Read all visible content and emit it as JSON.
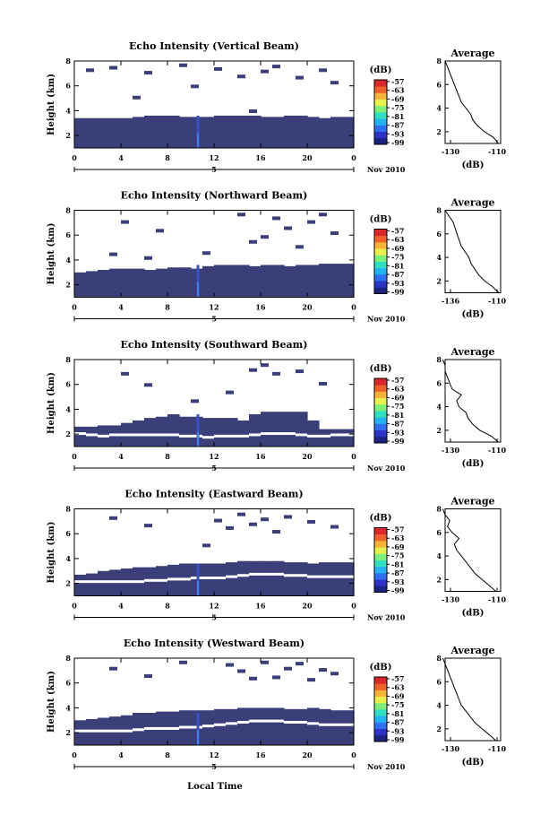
{
  "x_axis_label": "Local Time",
  "date_label": "Nov 2010",
  "day_label": "5",
  "colorbar": {
    "unit": "(dB)",
    "ticks": [
      "-57",
      "-63",
      "-69",
      "-75",
      "-81",
      "-87",
      "-93",
      "-99"
    ],
    "colors": [
      "#1a2380",
      "#2b34c4",
      "#2f6ff0",
      "#24b3f2",
      "#2fe0c0",
      "#7ef07a",
      "#e8f04a",
      "#f7b23a",
      "#f0602a",
      "#d8262a"
    ]
  },
  "colors": {
    "echo_low": "#3a3f7a",
    "echo_mid": "#3b4fc4",
    "echo_bright": "#4a8cf0"
  },
  "chart_data": [
    {
      "type": "heatmap",
      "title": "Echo Intensity (Vertical Beam)",
      "ylabel": "Height (km)",
      "xlim": [
        0,
        24
      ],
      "ylim": [
        1,
        8
      ],
      "xticks": [
        "0",
        "4",
        "8",
        "12",
        "16",
        "20",
        "0"
      ],
      "yticks": [
        "2",
        "4",
        "6",
        "8"
      ],
      "echo_top_km": [
        3.4,
        3.4,
        3.4,
        3.4,
        3.4,
        3.5,
        3.6,
        3.6,
        3.6,
        3.5,
        3.5,
        3.5,
        3.6,
        3.6,
        3.6,
        3.6,
        3.5,
        3.5,
        3.6,
        3.6,
        3.5,
        3.4,
        3.5,
        3.5
      ],
      "gap_km": null,
      "cloud_cells": [
        [
          1,
          7.4
        ],
        [
          3,
          7.6
        ],
        [
          6,
          7.2
        ],
        [
          9,
          7.8
        ],
        [
          12,
          7.5
        ],
        [
          14,
          6.9
        ],
        [
          16,
          7.3
        ],
        [
          17,
          7.7
        ],
        [
          19,
          6.8
        ],
        [
          21,
          7.4
        ],
        [
          22,
          6.4
        ],
        [
          10,
          6.1
        ],
        [
          5,
          5.2
        ],
        [
          15,
          4.1
        ]
      ],
      "profile": {
        "title": "Average",
        "xlabel": "(dB)",
        "xticks": [
          "-130",
          "-110"
        ],
        "xlim": [
          -130,
          -106
        ],
        "ylim": [
          1,
          8
        ],
        "yticks": [
          "2",
          "4",
          "6",
          "8"
        ],
        "height_km": [
          1.0,
          1.5,
          2.0,
          2.5,
          3.0,
          3.5,
          4.0,
          4.5,
          5.0,
          5.5,
          6.0,
          6.5,
          7.0,
          7.5,
          8.0
        ],
        "db": [
          -107,
          -109,
          -113,
          -116,
          -118,
          -119,
          -121,
          -123,
          -124,
          -125,
          -126,
          -127,
          -128,
          -129,
          -130
        ]
      }
    },
    {
      "type": "heatmap",
      "title": "Echo Intensity (Northward Beam)",
      "ylabel": "Height (km)",
      "xlim": [
        0,
        24
      ],
      "ylim": [
        1,
        8
      ],
      "xticks": [
        "0",
        "4",
        "8",
        "12",
        "16",
        "20",
        "0"
      ],
      "yticks": [
        "2",
        "4",
        "6",
        "8"
      ],
      "echo_top_km": [
        3.0,
        3.1,
        3.2,
        3.3,
        3.3,
        3.3,
        3.2,
        3.3,
        3.4,
        3.4,
        3.3,
        3.5,
        3.6,
        3.6,
        3.6,
        3.5,
        3.6,
        3.6,
        3.5,
        3.6,
        3.6,
        3.7,
        3.7,
        3.7
      ],
      "gap_km": null,
      "cloud_cells": [
        [
          4,
          7.2
        ],
        [
          7,
          6.5
        ],
        [
          14,
          7.8
        ],
        [
          15,
          5.6
        ],
        [
          16,
          6.0
        ],
        [
          17,
          7.5
        ],
        [
          18,
          6.7
        ],
        [
          19,
          5.2
        ],
        [
          20,
          7.2
        ],
        [
          21,
          7.8
        ],
        [
          22,
          6.3
        ],
        [
          11,
          4.7
        ],
        [
          3,
          4.6
        ],
        [
          6,
          4.3
        ]
      ],
      "profile": {
        "title": "Average",
        "xlabel": "(dB)",
        "xticks": [
          "-136",
          "-110"
        ],
        "xlim": [
          -136,
          -108
        ],
        "ylim": [
          1,
          8
        ],
        "yticks": [
          "2",
          "4",
          "6",
          "8"
        ],
        "height_km": [
          1.0,
          1.5,
          2.0,
          2.5,
          3.0,
          3.5,
          4.0,
          4.5,
          5.0,
          5.5,
          6.0,
          6.5,
          7.0,
          7.5,
          8.0
        ],
        "db": [
          -109,
          -112,
          -116,
          -119,
          -121,
          -123,
          -124,
          -126,
          -128,
          -129,
          -130,
          -131,
          -132,
          -134,
          -136
        ]
      }
    },
    {
      "type": "heatmap",
      "title": "Echo Intensity (Southward Beam)",
      "ylabel": "Height (km)",
      "xlim": [
        0,
        24
      ],
      "ylim": [
        1,
        8
      ],
      "xticks": [
        "0",
        "4",
        "8",
        "12",
        "16",
        "20",
        "0"
      ],
      "yticks": [
        "2",
        "4",
        "6",
        "8"
      ],
      "echo_top_km": [
        2.6,
        2.6,
        2.7,
        2.7,
        2.9,
        3.1,
        3.3,
        3.4,
        3.6,
        3.4,
        3.4,
        3.3,
        3.3,
        3.3,
        3.1,
        3.6,
        3.8,
        3.8,
        3.8,
        3.8,
        3.1,
        2.4,
        2.4,
        2.4
      ],
      "gap_km": [
        2.0,
        1.9,
        1.8,
        1.9,
        1.9,
        1.9,
        1.9,
        1.9,
        1.9,
        1.8,
        1.8,
        1.7,
        1.8,
        1.8,
        1.8,
        1.9,
        2.0,
        2.0,
        2.0,
        1.9,
        1.8,
        1.8,
        1.9,
        1.9
      ],
      "cloud_cells": [
        [
          4,
          7.0
        ],
        [
          6,
          6.1
        ],
        [
          15,
          7.3
        ],
        [
          16,
          7.7
        ],
        [
          17,
          7.0
        ],
        [
          19,
          7.2
        ],
        [
          21,
          6.2
        ],
        [
          13,
          5.5
        ],
        [
          10,
          4.8
        ]
      ],
      "profile": {
        "title": "Average",
        "xlabel": "(dB)",
        "xticks": [
          "-130",
          "-110"
        ],
        "xlim": [
          -130,
          -106
        ],
        "ylim": [
          1,
          8
        ],
        "yticks": [
          "2",
          "4",
          "6",
          "8"
        ],
        "height_km": [
          1.0,
          1.5,
          2.0,
          2.5,
          3.0,
          3.5,
          4.0,
          4.5,
          5.0,
          5.5,
          6.0,
          6.5,
          7.0,
          7.5,
          8.0
        ],
        "db": [
          -107,
          -110,
          -115,
          -118,
          -120,
          -121,
          -124,
          -125,
          -123,
          -127,
          -128,
          -129,
          -130,
          -130,
          -131
        ]
      }
    },
    {
      "type": "heatmap",
      "title": "Echo Intensity (Eastward Beam)",
      "ylabel": "Height (km)",
      "xlim": [
        0,
        24
      ],
      "ylim": [
        1,
        8
      ],
      "xticks": [
        "0",
        "4",
        "8",
        "12",
        "16",
        "20",
        "0"
      ],
      "yticks": [
        "2",
        "4",
        "6",
        "8"
      ],
      "echo_top_km": [
        2.7,
        2.8,
        3.0,
        3.1,
        3.2,
        3.3,
        3.3,
        3.4,
        3.5,
        3.6,
        3.6,
        3.6,
        3.6,
        3.7,
        3.8,
        3.8,
        3.8,
        3.8,
        3.7,
        3.7,
        3.6,
        3.7,
        3.7,
        3.7
      ],
      "gap_km": [
        2.1,
        2.1,
        2.1,
        2.1,
        2.1,
        2.1,
        2.2,
        2.2,
        2.3,
        2.3,
        2.4,
        2.4,
        2.4,
        2.5,
        2.6,
        2.7,
        2.7,
        2.7,
        2.6,
        2.6,
        2.5,
        2.5,
        2.5,
        2.5
      ],
      "cloud_cells": [
        [
          3,
          7.4
        ],
        [
          6,
          6.8
        ],
        [
          11,
          5.2
        ],
        [
          12,
          7.2
        ],
        [
          13,
          6.6
        ],
        [
          14,
          7.7
        ],
        [
          15,
          6.9
        ],
        [
          16,
          7.3
        ],
        [
          17,
          6.3
        ],
        [
          18,
          7.5
        ],
        [
          20,
          7.1
        ],
        [
          22,
          6.7
        ]
      ],
      "profile": {
        "title": "Average",
        "xlabel": "(dB)",
        "xticks": [
          "-130",
          "-110"
        ],
        "xlim": [
          -130,
          -106
        ],
        "ylim": [
          1,
          8
        ],
        "yticks": [
          "2",
          "4",
          "6",
          "8"
        ],
        "height_km": [
          1.0,
          1.5,
          2.0,
          2.5,
          3.0,
          3.5,
          4.0,
          4.5,
          5.0,
          5.5,
          6.0,
          6.5,
          7.0,
          7.5,
          8.0
        ],
        "db": [
          -108,
          -111,
          -114,
          -117,
          -119,
          -121,
          -123,
          -125,
          -126,
          -124,
          -127,
          -129,
          -128,
          -130,
          -131
        ]
      }
    },
    {
      "type": "heatmap",
      "title": "Echo Intensity (Westward Beam)",
      "ylabel": "Height (km)",
      "xlim": [
        0,
        24
      ],
      "ylim": [
        1,
        8
      ],
      "xticks": [
        "0",
        "4",
        "8",
        "12",
        "16",
        "20",
        "0"
      ],
      "yticks": [
        "2",
        "4",
        "6",
        "8"
      ],
      "echo_top_km": [
        3.0,
        3.1,
        3.2,
        3.3,
        3.4,
        3.6,
        3.6,
        3.7,
        3.7,
        3.8,
        3.8,
        3.8,
        3.9,
        3.9,
        4.0,
        4.0,
        4.0,
        4.0,
        3.9,
        3.9,
        4.0,
        3.9,
        3.8,
        3.8
      ],
      "gap_km": [
        2.1,
        2.1,
        2.1,
        2.1,
        2.1,
        2.2,
        2.3,
        2.3,
        2.3,
        2.4,
        2.4,
        2.5,
        2.6,
        2.7,
        2.8,
        2.9,
        2.9,
        2.9,
        2.8,
        2.8,
        2.7,
        2.6,
        2.6,
        2.6
      ],
      "cloud_cells": [
        [
          3,
          7.3
        ],
        [
          6,
          6.7
        ],
        [
          9,
          7.8
        ],
        [
          13,
          7.6
        ],
        [
          14,
          7.1
        ],
        [
          15,
          6.5
        ],
        [
          16,
          7.8
        ],
        [
          17,
          6.6
        ],
        [
          18,
          7.3
        ],
        [
          19,
          7.7
        ],
        [
          20,
          6.4
        ],
        [
          21,
          7.2
        ],
        [
          22,
          6.9
        ]
      ],
      "profile": {
        "title": "Average",
        "xlabel": "(dB)",
        "xticks": [
          "-130",
          "-110"
        ],
        "xlim": [
          -130,
          -106
        ],
        "ylim": [
          1,
          8
        ],
        "yticks": [
          "2",
          "4",
          "6",
          "8"
        ],
        "height_km": [
          1.0,
          1.5,
          2.0,
          2.5,
          3.0,
          3.5,
          4.0,
          4.5,
          5.0,
          5.5,
          6.0,
          6.5,
          7.0,
          7.5,
          8.0
        ],
        "db": [
          -108,
          -111,
          -114,
          -117,
          -119,
          -121,
          -123,
          -124,
          -125,
          -126,
          -127,
          -128,
          -129,
          -130,
          -131
        ]
      }
    }
  ]
}
